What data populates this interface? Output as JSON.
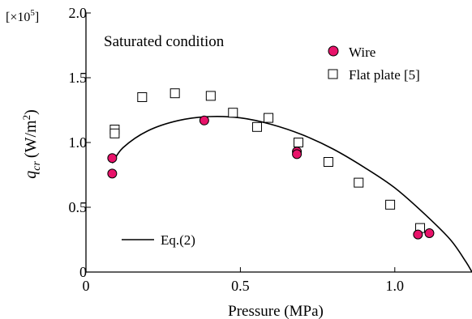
{
  "chart_data": {
    "type": "scatter",
    "title": "Saturated condition",
    "xlabel": "Pressure (MPa)",
    "ylabel": {
      "symbol": "q",
      "subscript": "cr",
      "unit": "(W/m",
      "unit_sup": "2",
      "unit_end": ")"
    },
    "y_multiplier": {
      "prefix": "[×10",
      "exp": "5",
      "suffix": "]"
    },
    "xlim": [
      0,
      1.25
    ],
    "ylim": [
      0,
      2.0
    ],
    "x_ticks": [
      {
        "value": 0,
        "label": "0"
      },
      {
        "value": 0.5,
        "label": "0.5"
      },
      {
        "value": 1.0,
        "label": "1.0"
      }
    ],
    "y_ticks": [
      {
        "value": 0,
        "label": "0"
      },
      {
        "value": 0.5,
        "label": "0.5"
      },
      {
        "value": 1.0,
        "label": "1.0"
      },
      {
        "value": 1.5,
        "label": "1.5"
      },
      {
        "value": 2.0,
        "label": "2.0"
      }
    ],
    "grid": false,
    "legend_placement": "top-right",
    "series": [
      {
        "name": "Wire",
        "marker": "circle",
        "color": "#e8136a",
        "points": [
          [
            0.085,
            0.88
          ],
          [
            0.085,
            0.76
          ],
          [
            0.383,
            1.17
          ],
          [
            0.683,
            0.93
          ],
          [
            0.683,
            0.91
          ],
          [
            1.075,
            0.29
          ],
          [
            1.112,
            0.3
          ]
        ]
      },
      {
        "name": "Flat plate [5]",
        "marker": "square",
        "color": "#000000",
        "points": [
          [
            0.093,
            1.1
          ],
          [
            0.093,
            1.07
          ],
          [
            0.182,
            1.35
          ],
          [
            0.288,
            1.38
          ],
          [
            0.404,
            1.36
          ],
          [
            0.476,
            1.23
          ],
          [
            0.554,
            1.12
          ],
          [
            0.591,
            1.19
          ],
          [
            0.688,
            1.0
          ],
          [
            0.785,
            0.85
          ],
          [
            0.883,
            0.69
          ],
          [
            0.985,
            0.52
          ],
          [
            1.082,
            0.34
          ]
        ]
      }
    ],
    "curve": {
      "name": "Eq.(2)",
      "points": [
        [
          0.085,
          0.84
        ],
        [
          0.12,
          0.96
        ],
        [
          0.2,
          1.09
        ],
        [
          0.3,
          1.17
        ],
        [
          0.4,
          1.2
        ],
        [
          0.5,
          1.19
        ],
        [
          0.6,
          1.14
        ],
        [
          0.7,
          1.06
        ],
        [
          0.8,
          0.95
        ],
        [
          0.9,
          0.81
        ],
        [
          1.0,
          0.65
        ],
        [
          1.1,
          0.44
        ],
        [
          1.18,
          0.25
        ],
        [
          1.23,
          0.08
        ],
        [
          1.25,
          0.0
        ]
      ]
    }
  }
}
